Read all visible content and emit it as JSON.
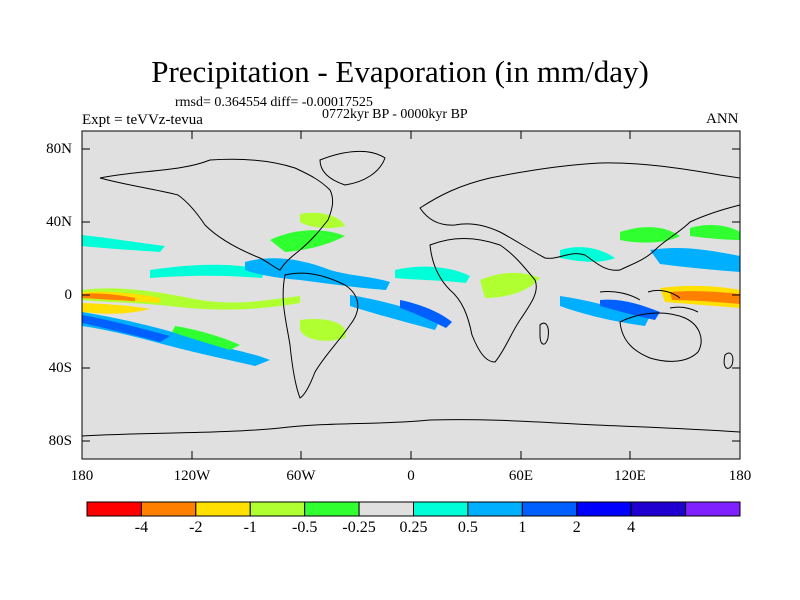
{
  "plot": {
    "title": "Precipitation - Evaporation (in mm/day)",
    "stats": "rmsd= 0.364554 diff= -0.00017525",
    "period": "0772kyr BP - 0000kyr BP",
    "expt": "Expt = teVVz-tevua",
    "season": "ANN"
  },
  "axes": {
    "lat_ticks": [
      "80N",
      "40N",
      "0",
      "40S",
      "80S"
    ],
    "lon_ticks": [
      "180",
      "120W",
      "60W",
      "0",
      "60E",
      "120E",
      "180"
    ]
  },
  "colorbar": {
    "colors": [
      "#ff0000",
      "#ff8000",
      "#ffe000",
      "#b0ff30",
      "#30ff30",
      "#e0e0e0",
      "#00ffd8",
      "#00b0ff",
      "#0060ff",
      "#0000ff",
      "#2000d0",
      "#8020ff"
    ],
    "labels": [
      "-4",
      "-2",
      "-1",
      "-0.5",
      "-0.25",
      "0.25",
      "0.5",
      "1",
      "2",
      "4"
    ]
  },
  "map_colors": {
    "ocean_land_bg": "#e0e0e0",
    "coast": "#000000"
  }
}
